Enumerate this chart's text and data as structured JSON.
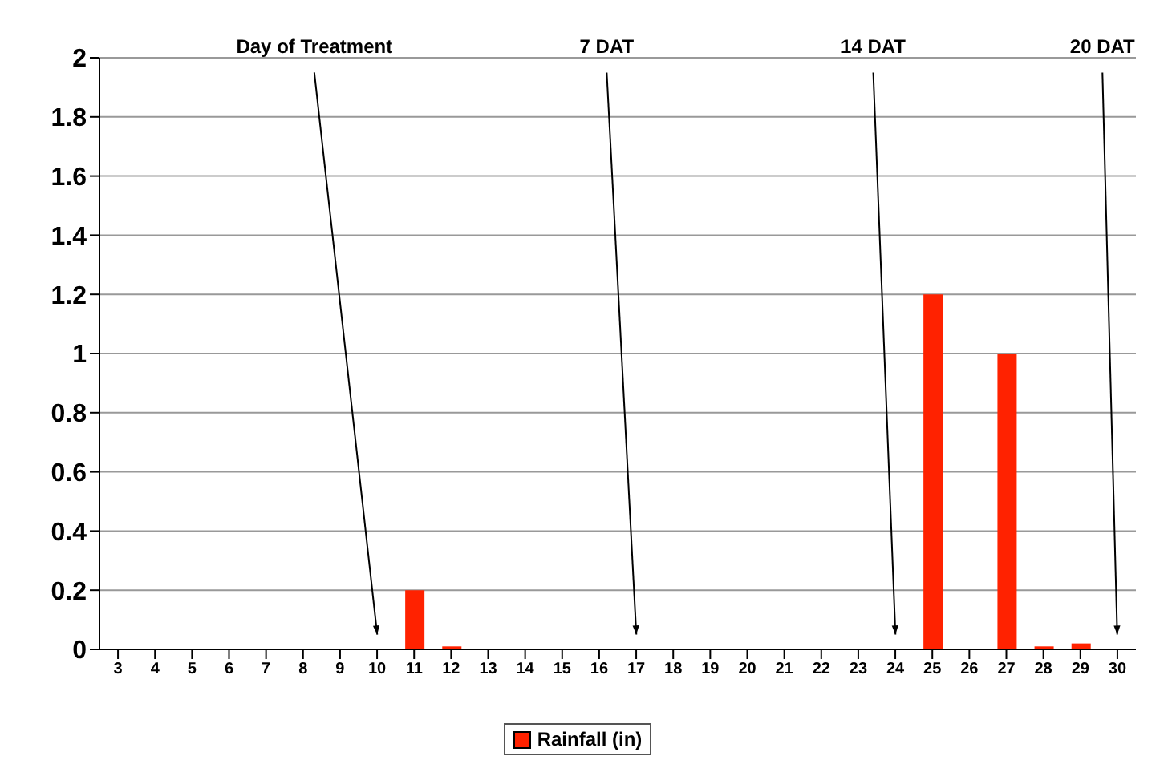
{
  "chart_data": {
    "type": "bar",
    "categories": [
      "3",
      "4",
      "5",
      "6",
      "7",
      "8",
      "9",
      "10",
      "11",
      "12",
      "13",
      "14",
      "15",
      "16",
      "17",
      "18",
      "19",
      "20",
      "21",
      "22",
      "23",
      "24",
      "25",
      "26",
      "27",
      "28",
      "29",
      "30"
    ],
    "series": [
      {
        "name": "Rainfall (in)",
        "color": "#ff2200",
        "values": [
          0,
          0,
          0,
          0,
          0,
          0,
          0,
          0,
          0.2,
          0.01,
          0,
          0,
          0,
          0,
          0,
          0,
          0,
          0,
          0,
          0,
          0,
          0,
          1.2,
          0,
          1.0,
          0.01,
          0.02,
          0
        ]
      }
    ],
    "ylim": [
      0,
      2
    ],
    "yticks": [
      0,
      0.2,
      0.4,
      0.6,
      0.8,
      1,
      1.2,
      1.4,
      1.6,
      1.8,
      2
    ],
    "grid": "y",
    "legend": "bottom",
    "annotations": [
      "Day of Treatment",
      "7 DAT",
      "14 DAT",
      "20 DAT"
    ]
  }
}
